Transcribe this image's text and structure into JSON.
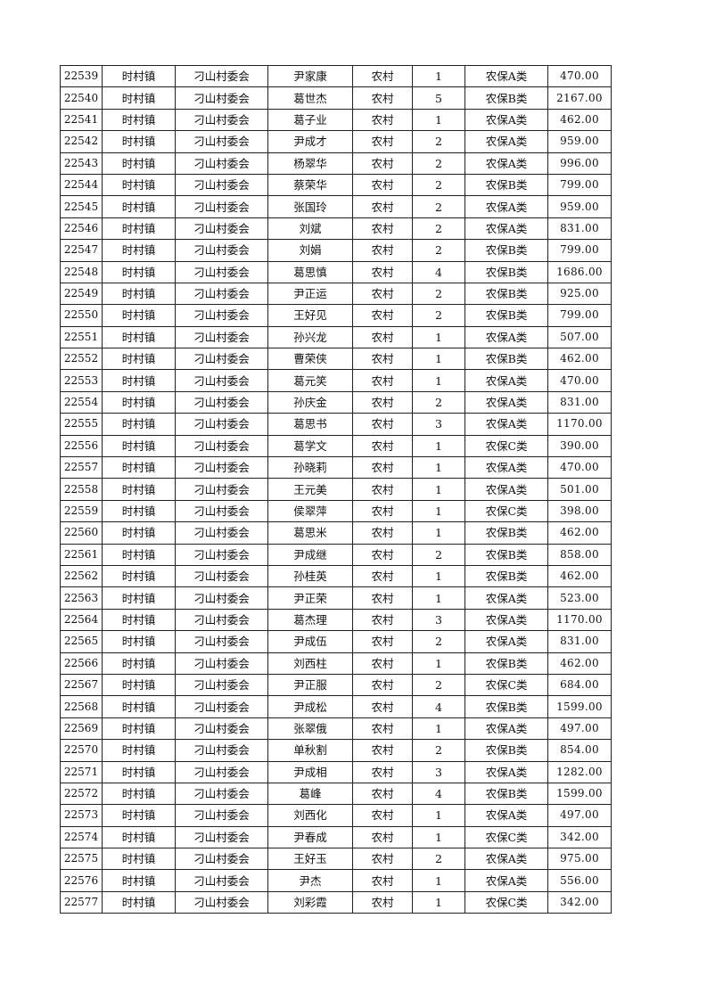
{
  "rows": [
    [
      "22539",
      "时村镇",
      "刁山村委会",
      "尹家康",
      "农村",
      "1",
      "农保A类",
      "470.00"
    ],
    [
      "22540",
      "时村镇",
      "刁山村委会",
      "葛世杰",
      "农村",
      "5",
      "农保B类",
      "2167.00"
    ],
    [
      "22541",
      "时村镇",
      "刁山村委会",
      "葛子业",
      "农村",
      "1",
      "农保A类",
      "462.00"
    ],
    [
      "22542",
      "时村镇",
      "刁山村委会",
      "尹成才",
      "农村",
      "2",
      "农保A类",
      "959.00"
    ],
    [
      "22543",
      "时村镇",
      "刁山村委会",
      "杨翠华",
      "农村",
      "2",
      "农保A类",
      "996.00"
    ],
    [
      "22544",
      "时村镇",
      "刁山村委会",
      "蔡荣华",
      "农村",
      "2",
      "农保B类",
      "799.00"
    ],
    [
      "22545",
      "时村镇",
      "刁山村委会",
      "张国玲",
      "农村",
      "2",
      "农保A类",
      "959.00"
    ],
    [
      "22546",
      "时村镇",
      "刁山村委会",
      "刘斌",
      "农村",
      "2",
      "农保A类",
      "831.00"
    ],
    [
      "22547",
      "时村镇",
      "刁山村委会",
      "刘娟",
      "农村",
      "2",
      "农保B类",
      "799.00"
    ],
    [
      "22548",
      "时村镇",
      "刁山村委会",
      "葛思慎",
      "农村",
      "4",
      "农保B类",
      "1686.00"
    ],
    [
      "22549",
      "时村镇",
      "刁山村委会",
      "尹正运",
      "农村",
      "2",
      "农保B类",
      "925.00"
    ],
    [
      "22550",
      "时村镇",
      "刁山村委会",
      "王好见",
      "农村",
      "2",
      "农保B类",
      "799.00"
    ],
    [
      "22551",
      "时村镇",
      "刁山村委会",
      "孙兴龙",
      "农村",
      "1",
      "农保A类",
      "507.00"
    ],
    [
      "22552",
      "时村镇",
      "刁山村委会",
      "曹荣侠",
      "农村",
      "1",
      "农保B类",
      "462.00"
    ],
    [
      "22553",
      "时村镇",
      "刁山村委会",
      "葛元笑",
      "农村",
      "1",
      "农保A类",
      "470.00"
    ],
    [
      "22554",
      "时村镇",
      "刁山村委会",
      "孙庆金",
      "农村",
      "2",
      "农保A类",
      "831.00"
    ],
    [
      "22555",
      "时村镇",
      "刁山村委会",
      "葛思书",
      "农村",
      "3",
      "农保A类",
      "1170.00"
    ],
    [
      "22556",
      "时村镇",
      "刁山村委会",
      "葛学文",
      "农村",
      "1",
      "农保C类",
      "390.00"
    ],
    [
      "22557",
      "时村镇",
      "刁山村委会",
      "孙晓莉",
      "农村",
      "1",
      "农保A类",
      "470.00"
    ],
    [
      "22558",
      "时村镇",
      "刁山村委会",
      "王元美",
      "农村",
      "1",
      "农保A类",
      "501.00"
    ],
    [
      "22559",
      "时村镇",
      "刁山村委会",
      "侯翠萍",
      "农村",
      "1",
      "农保C类",
      "398.00"
    ],
    [
      "22560",
      "时村镇",
      "刁山村委会",
      "葛思米",
      "农村",
      "1",
      "农保B类",
      "462.00"
    ],
    [
      "22561",
      "时村镇",
      "刁山村委会",
      "尹成继",
      "农村",
      "2",
      "农保B类",
      "858.00"
    ],
    [
      "22562",
      "时村镇",
      "刁山村委会",
      "孙桂英",
      "农村",
      "1",
      "农保B类",
      "462.00"
    ],
    [
      "22563",
      "时村镇",
      "刁山村委会",
      "尹正荣",
      "农村",
      "1",
      "农保A类",
      "523.00"
    ],
    [
      "22564",
      "时村镇",
      "刁山村委会",
      "葛杰理",
      "农村",
      "3",
      "农保A类",
      "1170.00"
    ],
    [
      "22565",
      "时村镇",
      "刁山村委会",
      "尹成伍",
      "农村",
      "2",
      "农保A类",
      "831.00"
    ],
    [
      "22566",
      "时村镇",
      "刁山村委会",
      "刘西柱",
      "农村",
      "1",
      "农保B类",
      "462.00"
    ],
    [
      "22567",
      "时村镇",
      "刁山村委会",
      "尹正服",
      "农村",
      "2",
      "农保C类",
      "684.00"
    ],
    [
      "22568",
      "时村镇",
      "刁山村委会",
      "尹成松",
      "农村",
      "4",
      "农保B类",
      "1599.00"
    ],
    [
      "22569",
      "时村镇",
      "刁山村委会",
      "张翠俄",
      "农村",
      "1",
      "农保A类",
      "497.00"
    ],
    [
      "22570",
      "时村镇",
      "刁山村委会",
      "单秋割",
      "农村",
      "2",
      "农保B类",
      "854.00"
    ],
    [
      "22571",
      "时村镇",
      "刁山村委会",
      "尹成相",
      "农村",
      "3",
      "农保A类",
      "1282.00"
    ],
    [
      "22572",
      "时村镇",
      "刁山村委会",
      "葛峰",
      "农村",
      "4",
      "农保B类",
      "1599.00"
    ],
    [
      "22573",
      "时村镇",
      "刁山村委会",
      "刘西化",
      "农村",
      "1",
      "农保A类",
      "497.00"
    ],
    [
      "22574",
      "时村镇",
      "刁山村委会",
      "尹春成",
      "农村",
      "1",
      "农保C类",
      "342.00"
    ],
    [
      "22575",
      "时村镇",
      "刁山村委会",
      "王好玉",
      "农村",
      "2",
      "农保A类",
      "975.00"
    ],
    [
      "22576",
      "时村镇",
      "刁山村委会",
      "尹杰",
      "农村",
      "1",
      "农保A类",
      "556.00"
    ],
    [
      "22577",
      "时村镇",
      "刁山村委会",
      "刘彩霞",
      "农村",
      "1",
      "农保C类",
      "342.00"
    ]
  ]
}
